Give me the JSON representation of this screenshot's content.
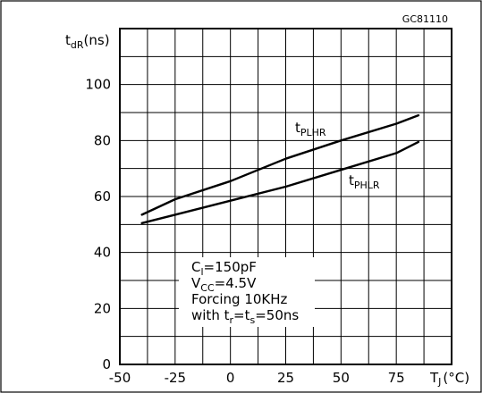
{
  "figure_code": "GC81110",
  "chart_data": {
    "type": "line",
    "xlabel": {
      "main": "T",
      "sub": "J",
      "unit": "(°C)"
    },
    "ylabel": {
      "main": "t",
      "sub": "dR",
      "unit": "(ns)"
    },
    "xlim": [
      -50,
      100
    ],
    "ylim": [
      0,
      120
    ],
    "x_tick_labels": [
      "-50",
      "-25",
      "0",
      "25",
      "50",
      "75"
    ],
    "x_ticks": [
      -50,
      -25,
      0,
      25,
      50,
      75
    ],
    "y_tick_labels": [
      "0",
      "20",
      "40",
      "60",
      "80",
      "100"
    ],
    "y_ticks": [
      0,
      20,
      40,
      60,
      80,
      100
    ],
    "grid": true,
    "series": [
      {
        "name": "t_PLHR",
        "label_main": "t",
        "label_sub": "PLHR",
        "x": [
          -40,
          -25,
          0,
          25,
          50,
          75,
          85
        ],
        "y": [
          53.5,
          59,
          65.5,
          73.5,
          80,
          86,
          89
        ]
      },
      {
        "name": "t_PHLR",
        "label_main": "t",
        "label_sub": "PHLR",
        "x": [
          -40,
          -25,
          0,
          25,
          50,
          75,
          85
        ],
        "y": [
          50.5,
          53.5,
          58.5,
          63.5,
          69.5,
          75.5,
          79.5
        ]
      }
    ],
    "annotations": [
      {
        "main": "C",
        "sub": "l",
        "rest": "=150pF"
      },
      {
        "main": "V",
        "sub": "CC",
        "rest": "=4.5V"
      },
      {
        "main": "Forcing 10KHz",
        "sub": "",
        "rest": ""
      },
      {
        "main": "with t",
        "sub": "r",
        "rest": "=t",
        "sub2": "s",
        "rest2": "=50ns"
      }
    ]
  }
}
